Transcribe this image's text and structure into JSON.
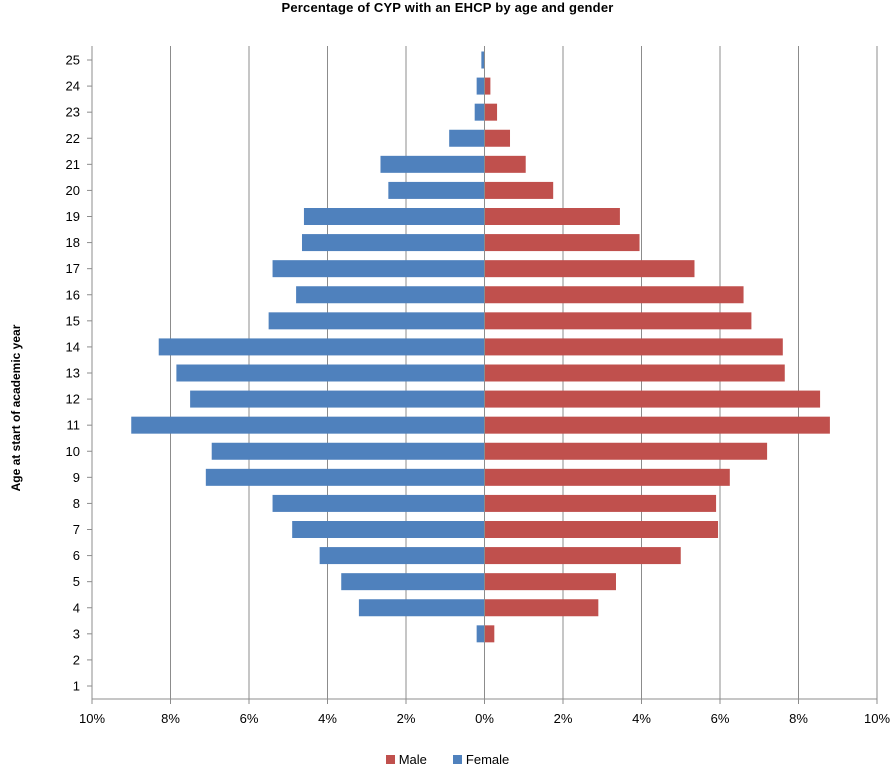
{
  "chart_data": {
    "type": "bar",
    "orientation": "horizontal",
    "title": "Percentage of CYP with an EHCP by age and gender",
    "ylabel": "Age at start of academic year",
    "xlabel": "",
    "categories": [
      "1",
      "2",
      "3",
      "4",
      "5",
      "6",
      "7",
      "8",
      "9",
      "10",
      "11",
      "12",
      "13",
      "14",
      "15",
      "16",
      "17",
      "18",
      "19",
      "20",
      "21",
      "22",
      "23",
      "24",
      "25"
    ],
    "series": [
      {
        "name": "Male",
        "color": "#c0504d",
        "values": [
          0.0,
          0.0,
          0.25,
          2.9,
          3.35,
          5.0,
          5.95,
          5.9,
          6.25,
          7.2,
          8.8,
          8.55,
          7.65,
          7.6,
          6.8,
          6.6,
          5.35,
          3.95,
          3.45,
          1.75,
          1.05,
          0.65,
          0.32,
          0.15,
          0.0
        ]
      },
      {
        "name": "Female",
        "color": "#4f81bd",
        "values": [
          0.0,
          0.0,
          0.2,
          3.2,
          3.65,
          4.2,
          4.9,
          5.4,
          7.1,
          6.95,
          9.0,
          7.5,
          7.85,
          8.3,
          5.5,
          4.8,
          5.4,
          4.65,
          4.6,
          2.45,
          2.65,
          0.9,
          0.25,
          0.2,
          0.08
        ]
      }
    ],
    "xlim": [
      -10,
      10
    ],
    "x_tick_values": [
      -10,
      -8,
      -6,
      -4,
      -2,
      0,
      2,
      4,
      6,
      8,
      10
    ],
    "x_tick_labels": [
      "10%",
      "8%",
      "6%",
      "4%",
      "2%",
      "0%",
      "2%",
      "4%",
      "6%",
      "8%",
      "10%"
    ],
    "grid": "vertical",
    "legend_position": "bottom"
  },
  "legend": {
    "male_label": "Male",
    "female_label": "Female",
    "male_color": "#c0504d",
    "female_color": "#4f81bd"
  }
}
